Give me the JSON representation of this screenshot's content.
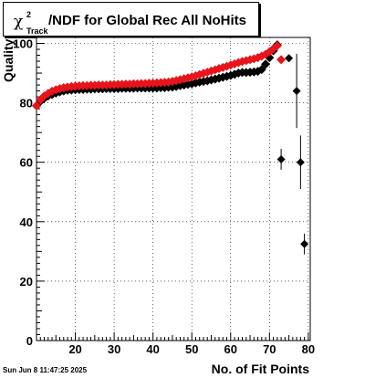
{
  "title": {
    "symbol": "χ",
    "superscript": "2",
    "subscript": "Track",
    "text": "/NDF for Global Rec All NoHits"
  },
  "timestamp": "Sun Jun  8 11:47:25 2025",
  "chart_data": {
    "type": "scatter",
    "title": "χ²_Track/NDF for Global Rec All NoHits",
    "xlabel": "No. of Fit Points",
    "ylabel": "Quality",
    "xlim": [
      10,
      80.5
    ],
    "ylim": [
      0,
      102
    ],
    "x_ticks": [
      20,
      30,
      40,
      50,
      60,
      70,
      80
    ],
    "y_ticks": [
      0,
      20,
      40,
      60,
      80,
      100
    ],
    "grid": true,
    "colors": {
      "series_black": "#000000",
      "series_red": "#e8141b"
    },
    "series": [
      {
        "color": "#000000",
        "x": [
          10,
          11,
          12,
          13,
          14,
          15,
          16,
          17,
          18,
          19,
          20,
          21,
          22,
          23,
          24,
          25,
          26,
          27,
          28,
          29,
          30,
          31,
          32,
          33,
          34,
          35,
          36,
          37,
          38,
          39,
          40,
          41,
          42,
          43,
          44,
          45,
          46,
          47,
          48,
          49,
          50,
          51,
          52,
          53,
          54,
          55,
          56,
          57,
          58,
          59,
          60,
          61,
          62,
          63,
          64,
          65,
          66,
          67,
          68,
          69,
          70,
          71,
          72
        ],
        "y": [
          79,
          80.5,
          81.5,
          82.3,
          82.8,
          83.3,
          83.7,
          84,
          84.2,
          84.3,
          84.4,
          84.5,
          84.5,
          84.6,
          84.6,
          84.7,
          84.7,
          84.7,
          84.8,
          84.8,
          84.8,
          84.8,
          84.9,
          84.9,
          84.9,
          84.9,
          85,
          85,
          85,
          85,
          85,
          85,
          85.1,
          85.1,
          85.2,
          85.3,
          85.5,
          85.8,
          86,
          86.2,
          86.4,
          86.7,
          87,
          87.2,
          87.4,
          87.7,
          88,
          88.3,
          88.6,
          88.9,
          89.2,
          89.6,
          90,
          90.2,
          90.2,
          90.3,
          90.4,
          90.6,
          91.2,
          93,
          95.2,
          97.5,
          99.5
        ],
        "extra_points": [
          {
            "x": 73,
            "y": 61,
            "yerr": 3.5
          },
          {
            "x": 75,
            "y": 95,
            "yerr": 1
          },
          {
            "x": 77,
            "y": 84,
            "yerr": 12.5
          },
          {
            "x": 78,
            "y": 60,
            "yerr": 9
          },
          {
            "x": 79,
            "y": 32.5,
            "yerr": 3.5
          }
        ]
      },
      {
        "color": "#e8141b",
        "x": [
          10,
          11,
          12,
          13,
          14,
          15,
          16,
          17,
          18,
          19,
          20,
          21,
          22,
          23,
          24,
          25,
          26,
          27,
          28,
          29,
          30,
          31,
          32,
          33,
          34,
          35,
          36,
          37,
          38,
          39,
          40,
          41,
          42,
          43,
          44,
          45,
          46,
          47,
          48,
          49,
          50,
          51,
          52,
          53,
          54,
          55,
          56,
          57,
          58,
          59,
          60,
          61,
          62,
          63,
          64,
          65,
          66,
          67,
          68,
          69,
          70,
          71,
          72,
          73
        ],
        "y": [
          79,
          81,
          82.3,
          83.2,
          83.9,
          84.4,
          84.8,
          85.1,
          85.3,
          85.5,
          85.6,
          85.7,
          85.8,
          85.8,
          85.9,
          85.9,
          86,
          86,
          86,
          86.1,
          86.1,
          86.2,
          86.2,
          86.3,
          86.3,
          86.4,
          86.4,
          86.5,
          86.5,
          86.6,
          86.6,
          86.7,
          86.8,
          86.9,
          87,
          87.2,
          87.5,
          87.8,
          88.1,
          88.4,
          88.7,
          89.1,
          89.5,
          89.9,
          90.3,
          90.7,
          91.1,
          91.5,
          91.9,
          92.3,
          92.7,
          93.1,
          93.5,
          93.9,
          94.2,
          94.5,
          94.8,
          95.2,
          95.7,
          96.3,
          97.2,
          98.2,
          99.2,
          94.5
        ]
      }
    ]
  }
}
